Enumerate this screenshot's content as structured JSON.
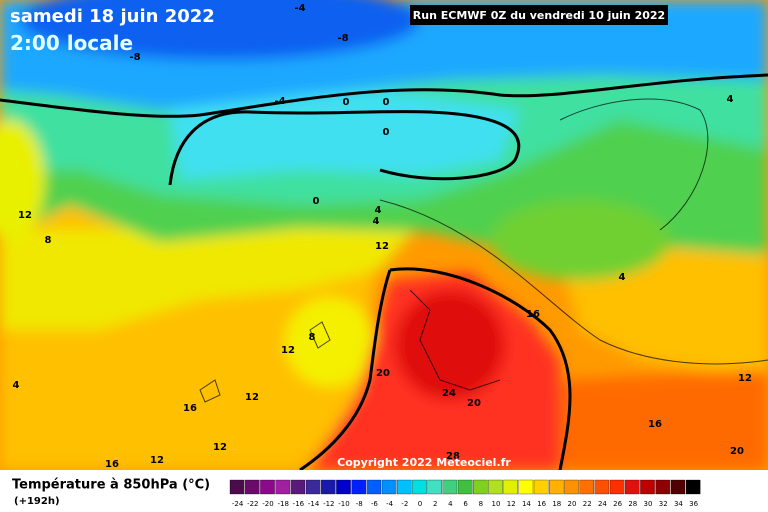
{
  "header": {
    "date": "samedi 18 juin 2022",
    "time": "2:00 locale",
    "run": "Run ECMWF 0Z du vendredi 10 juin 2022"
  },
  "copyright": "Copyright 2022 Meteociel.fr",
  "footer": {
    "title": "Température à 850hPa (°C)",
    "subtitle": "(+192h)"
  },
  "legend": [
    {
      "label": "-24",
      "color": "#4b0c4b"
    },
    {
      "label": "-22",
      "color": "#6a0a6a"
    },
    {
      "label": "-20",
      "color": "#8a0a8a"
    },
    {
      "label": "-18",
      "color": "#a020a0"
    },
    {
      "label": "-16",
      "color": "#5a1a7a"
    },
    {
      "label": "-14",
      "color": "#3a2a9a"
    },
    {
      "label": "-12",
      "color": "#1a1aaa"
    },
    {
      "label": "-10",
      "color": "#0000cc"
    },
    {
      "label": "-8",
      "color": "#0020ff"
    },
    {
      "label": "-6",
      "color": "#0060ff"
    },
    {
      "label": "-4",
      "color": "#0090ff"
    },
    {
      "label": "-2",
      "color": "#00c0ff"
    },
    {
      "label": "0",
      "color": "#00e0e0"
    },
    {
      "label": "2",
      "color": "#40e0c0"
    },
    {
      "label": "4",
      "color": "#40d080"
    },
    {
      "label": "6",
      "color": "#40c040"
    },
    {
      "label": "8",
      "color": "#80d020"
    },
    {
      "label": "10",
      "color": "#b0e020"
    },
    {
      "label": "12",
      "color": "#e0f000"
    },
    {
      "label": "14",
      "color": "#ffff00"
    },
    {
      "label": "16",
      "color": "#ffd000"
    },
    {
      "label": "18",
      "color": "#ffb000"
    },
    {
      "label": "20",
      "color": "#ff9000"
    },
    {
      "label": "22",
      "color": "#ff7000"
    },
    {
      "label": "24",
      "color": "#ff5000"
    },
    {
      "label": "26",
      "color": "#ff3000"
    },
    {
      "label": "28",
      "color": "#e01010"
    },
    {
      "label": "30",
      "color": "#c00000"
    },
    {
      "label": "32",
      "color": "#900000"
    },
    {
      "label": "34",
      "color": "#500000"
    },
    {
      "label": "36",
      "color": "#000000"
    }
  ],
  "map": {
    "labels": [
      "-4",
      "-8",
      "-8",
      "-4",
      "0",
      "0",
      "0",
      "0",
      "4",
      "4",
      "12",
      "4",
      "12",
      "8",
      "4",
      "16",
      "8",
      "12",
      "20",
      "12",
      "4",
      "12",
      "24",
      "20",
      "16",
      "16",
      "12",
      "28",
      "12",
      "16",
      "20"
    ]
  }
}
